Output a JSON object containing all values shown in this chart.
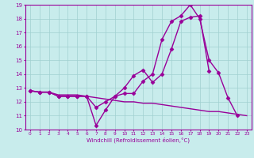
{
  "xlabel": "Windchill (Refroidissement éolien,°C)",
  "background_color": "#c8ecec",
  "grid_color": "#a0d0d0",
  "line_color": "#990099",
  "xlim": [
    -0.5,
    23.5
  ],
  "ylim": [
    10,
    19
  ],
  "xticks": [
    0,
    1,
    2,
    3,
    4,
    5,
    6,
    7,
    8,
    9,
    10,
    11,
    12,
    13,
    14,
    15,
    16,
    17,
    18,
    19,
    20,
    21,
    22,
    23
  ],
  "yticks": [
    10,
    11,
    12,
    13,
    14,
    15,
    16,
    17,
    18,
    19
  ],
  "series": [
    {
      "x": [
        0,
        1,
        2,
        3,
        4,
        5,
        6,
        7,
        8,
        9,
        10,
        11,
        12,
        13,
        14,
        15,
        16,
        17,
        18,
        19,
        20,
        21,
        22
      ],
      "y": [
        12.8,
        12.7,
        12.7,
        12.4,
        12.4,
        12.4,
        12.4,
        10.3,
        11.4,
        12.4,
        12.6,
        12.6,
        13.5,
        14.0,
        16.5,
        17.8,
        18.2,
        19.0,
        18.0,
        15.0,
        14.1,
        12.3,
        11.0
      ],
      "marker": "D",
      "markersize": 2.5,
      "linewidth": 1.0
    },
    {
      "x": [
        0,
        1,
        2,
        3,
        4,
        5,
        6,
        7,
        8,
        9,
        10,
        11,
        12,
        13,
        14,
        15,
        16,
        17,
        18,
        19
      ],
      "y": [
        12.8,
        12.7,
        12.7,
        12.4,
        12.4,
        12.4,
        12.4,
        11.6,
        12.0,
        12.4,
        13.0,
        13.9,
        14.3,
        13.4,
        14.0,
        15.8,
        17.8,
        18.1,
        18.2,
        14.2
      ],
      "marker": "D",
      "markersize": 2.5,
      "linewidth": 1.0
    },
    {
      "x": [
        0,
        1,
        2,
        3,
        4,
        5,
        6,
        7,
        8,
        9,
        10,
        11,
        12,
        13,
        14,
        15,
        16,
        17,
        18,
        19,
        20,
        21,
        22,
        23
      ],
      "y": [
        12.8,
        12.7,
        12.7,
        12.5,
        12.5,
        12.5,
        12.4,
        12.3,
        12.2,
        12.1,
        12.0,
        12.0,
        11.9,
        11.9,
        11.8,
        11.7,
        11.6,
        11.5,
        11.4,
        11.3,
        11.3,
        11.2,
        11.1,
        11.0
      ],
      "marker": null,
      "markersize": 0,
      "linewidth": 1.0
    }
  ]
}
